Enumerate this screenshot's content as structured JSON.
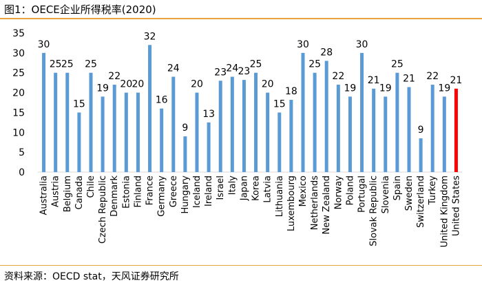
{
  "title": "图1：OECE企业所得税率(2020)",
  "source": "资料来源：OECD stat，天风证券研究所",
  "colors": {
    "bar": "#5b9bd5",
    "highlight": "#ff0000",
    "accent_rule": "#e8a33a",
    "axis": "#d9d9d9"
  },
  "chart_data": {
    "type": "bar",
    "title": "OECE企业所得税率(2020)",
    "xlabel": "",
    "ylabel": "",
    "ylim": [
      0,
      35
    ],
    "yticks": [
      0,
      5,
      10,
      15,
      20,
      25,
      30,
      35
    ],
    "grid": false,
    "legend": "none",
    "highlight_category": "United States",
    "categories": [
      "Australia",
      "Austria",
      "Belgium",
      "Canada",
      "Chile",
      "Czech Republic",
      "Denmark",
      "Estonia",
      "Finland",
      "France",
      "Germany",
      "Greece",
      "Hungary",
      "Iceland",
      "Ireland",
      "Israel",
      "Italy",
      "Japan",
      "Korea",
      "Latvia",
      "Lithuania",
      "Luxembourg",
      "Mexico",
      "Netherlands",
      "New Zealand",
      "Norway",
      "Poland",
      "Portugal",
      "Slovak Republic",
      "Slovenia",
      "Spain",
      "Sweden",
      "Switzerland",
      "Turkey",
      "United Kingdom",
      "United States"
    ],
    "values": [
      30,
      25,
      25,
      15,
      25,
      19,
      22,
      20,
      20,
      32,
      16,
      24,
      9,
      20,
      12.5,
      23,
      24,
      23.2,
      25,
      20,
      15,
      18.19,
      30,
      25,
      28,
      22,
      19,
      30,
      21,
      19,
      25,
      21.4,
      8.5,
      22,
      19,
      21
    ],
    "labels": [
      "30",
      "25",
      "25",
      "15",
      "25",
      "19",
      "22",
      "20",
      "20",
      "32",
      "16",
      "24",
      "9",
      "20",
      "13",
      "23",
      "24",
      "23",
      "25",
      "20",
      "15",
      "18",
      "30",
      "25",
      "28",
      "22",
      "19",
      "30",
      "21",
      "19",
      "25",
      "21",
      "9",
      "22",
      "19",
      "21"
    ]
  }
}
